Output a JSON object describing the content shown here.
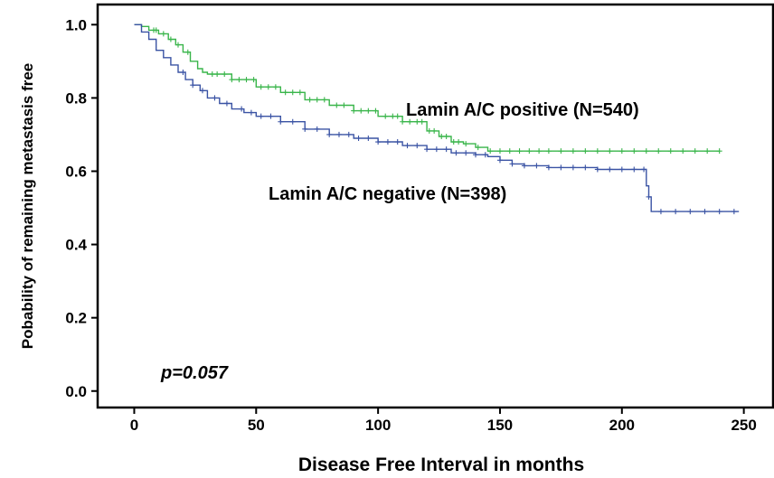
{
  "chart_data": {
    "type": "line",
    "subtype": "kaplan-meier",
    "xlabel": "Disease Free Interval in months",
    "ylabel": "Pobability of remaining metastasis free",
    "xlim": [
      -15,
      262
    ],
    "ylim": [
      -0.045,
      1.055
    ],
    "xticks": [
      0,
      50,
      100,
      150,
      200,
      250
    ],
    "yticks": [
      0.0,
      0.2,
      0.4,
      0.6,
      0.8,
      1.0
    ],
    "xtick_labels": [
      "0",
      "50",
      "100",
      "150",
      "200",
      "250"
    ],
    "ytick_labels": [
      "0.0",
      "0.2",
      "0.4",
      "0.6",
      "0.8",
      "1.0"
    ],
    "grid": false,
    "annotations": {
      "positive_label": "Lamin A/C positive (N=540)",
      "negative_label": "Lamin A/C negative (N=398)",
      "p_value": "p=0.057"
    },
    "series": [
      {
        "key": "positive",
        "color": "#39b54a",
        "x": [
          0,
          3,
          6,
          10,
          14,
          17,
          20,
          23,
          26,
          28,
          30,
          40,
          50,
          60,
          70,
          80,
          90,
          100,
          110,
          120,
          125,
          130,
          135,
          140,
          145,
          150,
          160,
          180,
          200,
          220,
          240
        ],
        "y": [
          1.0,
          0.995,
          0.985,
          0.975,
          0.96,
          0.945,
          0.925,
          0.9,
          0.88,
          0.87,
          0.865,
          0.85,
          0.83,
          0.815,
          0.795,
          0.78,
          0.765,
          0.75,
          0.735,
          0.71,
          0.695,
          0.68,
          0.675,
          0.665,
          0.655,
          0.655,
          0.655,
          0.655,
          0.655,
          0.655,
          0.655
        ],
        "censor_x": [
          8,
          9,
          12,
          15,
          18,
          22,
          32,
          34,
          37,
          40,
          43,
          46,
          49,
          52,
          55,
          58,
          62,
          65,
          68,
          72,
          75,
          78,
          83,
          86,
          90,
          93,
          96,
          99,
          103,
          106,
          108,
          110,
          113,
          116,
          118,
          121,
          123,
          126,
          128,
          131,
          133,
          136,
          141,
          146,
          150,
          154,
          158,
          162,
          166,
          170,
          175,
          180,
          185,
          190,
          195,
          200,
          205,
          210,
          215,
          220,
          225,
          230,
          235,
          240
        ]
      },
      {
        "key": "negative",
        "color": "#3a53a4",
        "x": [
          0,
          3,
          6,
          9,
          12,
          15,
          18,
          21,
          24,
          27,
          30,
          35,
          40,
          45,
          50,
          60,
          70,
          80,
          90,
          100,
          110,
          120,
          130,
          140,
          145,
          150,
          155,
          160,
          170,
          180,
          190,
          200,
          209,
          210,
          211,
          212,
          215,
          230,
          248
        ],
        "y": [
          1.0,
          0.98,
          0.96,
          0.93,
          0.91,
          0.89,
          0.87,
          0.85,
          0.835,
          0.82,
          0.8,
          0.785,
          0.77,
          0.76,
          0.75,
          0.735,
          0.715,
          0.7,
          0.69,
          0.68,
          0.67,
          0.66,
          0.65,
          0.645,
          0.64,
          0.63,
          0.62,
          0.615,
          0.61,
          0.61,
          0.605,
          0.605,
          0.605,
          0.56,
          0.53,
          0.49,
          0.49,
          0.49,
          0.49
        ],
        "censor_x": [
          20,
          24,
          28,
          33,
          38,
          44,
          48,
          52,
          56,
          60,
          65,
          70,
          75,
          80,
          84,
          88,
          92,
          96,
          100,
          104,
          108,
          112,
          116,
          120,
          124,
          128,
          132,
          136,
          140,
          144,
          150,
          155,
          160,
          165,
          170,
          175,
          180,
          185,
          190,
          195,
          200,
          205,
          209,
          211,
          216,
          222,
          228,
          234,
          240,
          246
        ]
      }
    ]
  }
}
